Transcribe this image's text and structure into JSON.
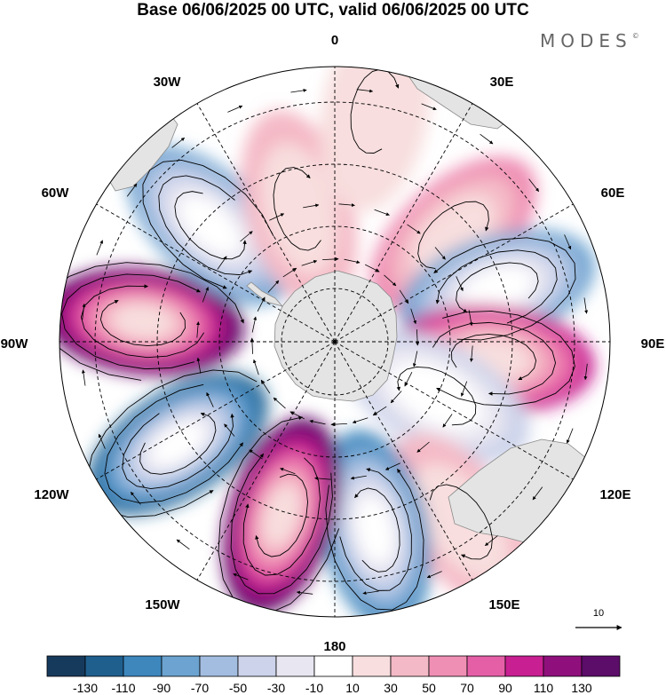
{
  "title": "Base 06/06/2025 00 UTC, valid 06/06/2025 00 UTC",
  "logo": "MODES",
  "logo_mark": "©",
  "longitude_labels": {
    "l0": "0",
    "l30e": "30E",
    "l60e": "60E",
    "l90e": "90E",
    "l120e": "120E",
    "l150e": "150E",
    "l180": "180",
    "l150w": "150W",
    "l120w": "120W",
    "l90w": "90W",
    "l60w": "60W",
    "l30w": "30W"
  },
  "reference_vector": {
    "label": "10"
  },
  "colorbar": {
    "colors": [
      "#163a5c",
      "#1f5f8e",
      "#3d87bd",
      "#6ca3d0",
      "#a3bde0",
      "#ccd3ea",
      "#e8e6f1",
      "#ffffff",
      "#f8dede",
      "#f4b9c6",
      "#ef8fb4",
      "#e55fa7",
      "#c81f92",
      "#8f107c",
      "#5c0c69"
    ],
    "tick_labels": [
      "-130",
      "-110",
      "-90",
      "-70",
      "-50",
      "-30",
      "-10",
      "10",
      "30",
      "50",
      "70",
      "90",
      "110",
      "130"
    ]
  },
  "anomaly_centers": [
    {
      "lon": 48,
      "colat": 0.58,
      "value": 50
    },
    {
      "lon": 72,
      "colat": 0.62,
      "value": -90
    },
    {
      "lon": 96,
      "colat": 0.58,
      "value": 90
    },
    {
      "lon": 118,
      "colat": 0.42,
      "value": -50
    },
    {
      "lon": 145,
      "colat": 0.8,
      "value": 30
    },
    {
      "lon": 168,
      "colat": 0.7,
      "value": -110
    },
    {
      "lon": -163,
      "colat": 0.66,
      "value": 130
    },
    {
      "lon": -123,
      "colat": 0.68,
      "value": -130
    },
    {
      "lon": -84,
      "colat": 0.7,
      "value": 130
    },
    {
      "lon": -47,
      "colat": 0.62,
      "value": -90
    },
    {
      "lon": -15,
      "colat": 0.5,
      "value": 30
    },
    {
      "lon": 10,
      "colat": 0.85,
      "value": 10
    }
  ]
}
